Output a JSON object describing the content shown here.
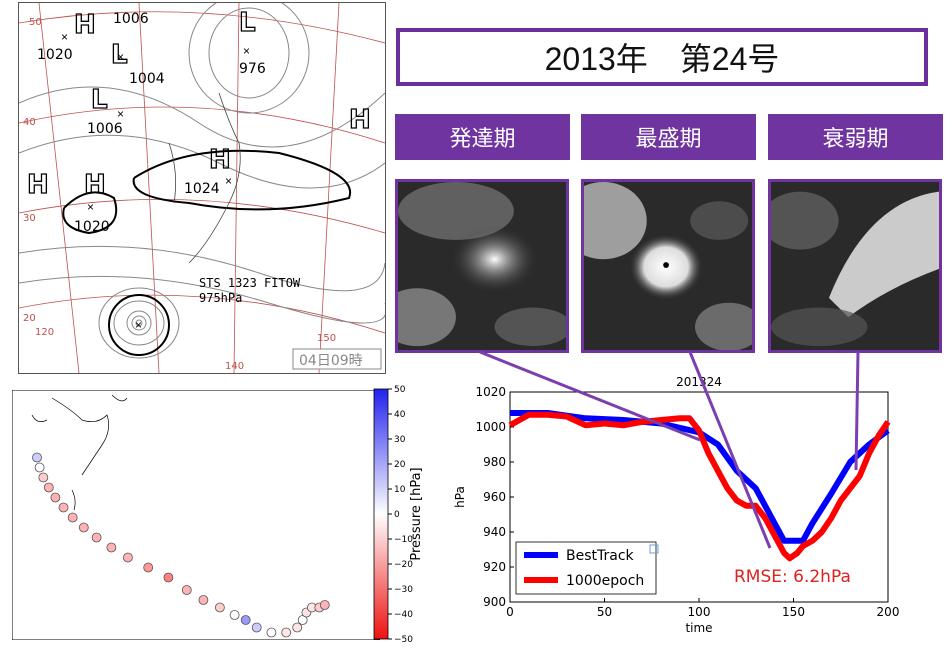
{
  "title": "2013年　第24号",
  "phases": [
    {
      "label": "発達期"
    },
    {
      "label": "最盛期"
    },
    {
      "label": "衰弱期"
    }
  ],
  "weather_map": {
    "storm_label": "STS 1323 FITOW",
    "storm_pressure": "975hPa",
    "time_stamp": "04日09時",
    "pressure_labels": [
      "1006",
      "1020",
      "1004",
      "976",
      "1006",
      "1024",
      "1020"
    ],
    "system_letters": [
      "H",
      "L",
      "L",
      "L",
      "H",
      "H",
      "H",
      "H"
    ],
    "lat_labels": [
      "50",
      "40",
      "30",
      "20"
    ],
    "lon_labels": [
      "120",
      "140",
      "150"
    ]
  },
  "colorbar": {
    "label": "Pressure [hPa]",
    "ticks": [
      "50",
      "40",
      "30",
      "20",
      "10",
      "0",
      "−10",
      "−20",
      "−30",
      "−40",
      "−50"
    ]
  },
  "chart_data": {
    "type": "line",
    "title": "201324",
    "xlabel": "time",
    "ylabel": "hPa",
    "xlim": [
      0,
      200
    ],
    "ylim": [
      900,
      1020
    ],
    "xticks": [
      "0",
      "50",
      "100",
      "150",
      "200"
    ],
    "yticks": [
      "900",
      "920",
      "940",
      "960",
      "980",
      "1000",
      "1020"
    ],
    "legend_position": "lower-left",
    "annotation": "RMSE:  6.2hPa",
    "series": [
      {
        "name": "BestTrack",
        "color": "#0000ff",
        "x": [
          0,
          20,
          40,
          60,
          80,
          100,
          110,
          120,
          130,
          140,
          145,
          155,
          160,
          170,
          180,
          190,
          200
        ],
        "y": [
          1008,
          1008,
          1005,
          1004,
          1002,
          997,
          990,
          975,
          965,
          945,
          935,
          935,
          945,
          962,
          980,
          990,
          998
        ]
      },
      {
        "name": "1000epoch",
        "color": "#ff0000",
        "x": [
          0,
          10,
          20,
          30,
          40,
          50,
          60,
          70,
          80,
          90,
          95,
          100,
          105,
          110,
          115,
          120,
          125,
          130,
          135,
          140,
          145,
          148,
          152,
          155,
          160,
          165,
          170,
          175,
          180,
          185,
          190,
          195,
          200
        ],
        "y": [
          1001,
          1007,
          1007,
          1006,
          1001,
          1002,
          1001,
          1003,
          1004,
          1005,
          1005,
          998,
          985,
          975,
          965,
          958,
          955,
          955,
          948,
          938,
          928,
          925,
          928,
          932,
          935,
          940,
          948,
          958,
          965,
          972,
          985,
          995,
          1003
        ]
      }
    ]
  },
  "track_points": [
    {
      "lon": 0.068,
      "lat": 0.27,
      "p": 10
    },
    {
      "lon": 0.075,
      "lat": 0.31,
      "p": 0
    },
    {
      "lon": 0.085,
      "lat": 0.35,
      "p": -10
    },
    {
      "lon": 0.1,
      "lat": 0.39,
      "p": -15
    },
    {
      "lon": 0.118,
      "lat": 0.43,
      "p": -15
    },
    {
      "lon": 0.14,
      "lat": 0.47,
      "p": -15
    },
    {
      "lon": 0.165,
      "lat": 0.51,
      "p": -15
    },
    {
      "lon": 0.195,
      "lat": 0.55,
      "p": -15
    },
    {
      "lon": 0.23,
      "lat": 0.59,
      "p": -15
    },
    {
      "lon": 0.27,
      "lat": 0.63,
      "p": -15
    },
    {
      "lon": 0.315,
      "lat": 0.67,
      "p": -15
    },
    {
      "lon": 0.37,
      "lat": 0.71,
      "p": -20
    },
    {
      "lon": 0.425,
      "lat": 0.75,
      "p": -25
    },
    {
      "lon": 0.475,
      "lat": 0.8,
      "p": -15
    },
    {
      "lon": 0.52,
      "lat": 0.84,
      "p": -15
    },
    {
      "lon": 0.565,
      "lat": 0.87,
      "p": -10
    },
    {
      "lon": 0.605,
      "lat": 0.9,
      "p": 0
    },
    {
      "lon": 0.635,
      "lat": 0.92,
      "p": 20
    },
    {
      "lon": 0.665,
      "lat": 0.95,
      "p": 10
    },
    {
      "lon": 0.705,
      "lat": 0.97,
      "p": 0
    },
    {
      "lon": 0.745,
      "lat": 0.97,
      "p": -5
    },
    {
      "lon": 0.775,
      "lat": 0.95,
      "p": -5
    },
    {
      "lon": 0.79,
      "lat": 0.92,
      "p": 0
    },
    {
      "lon": 0.8,
      "lat": 0.89,
      "p": -5
    },
    {
      "lon": 0.815,
      "lat": 0.87,
      "p": -5
    },
    {
      "lon": 0.835,
      "lat": 0.87,
      "p": -10
    },
    {
      "lon": 0.85,
      "lat": 0.86,
      "p": -15
    }
  ],
  "colors": {
    "accent": "#6f34a0",
    "connector": "#7b3fb0"
  }
}
